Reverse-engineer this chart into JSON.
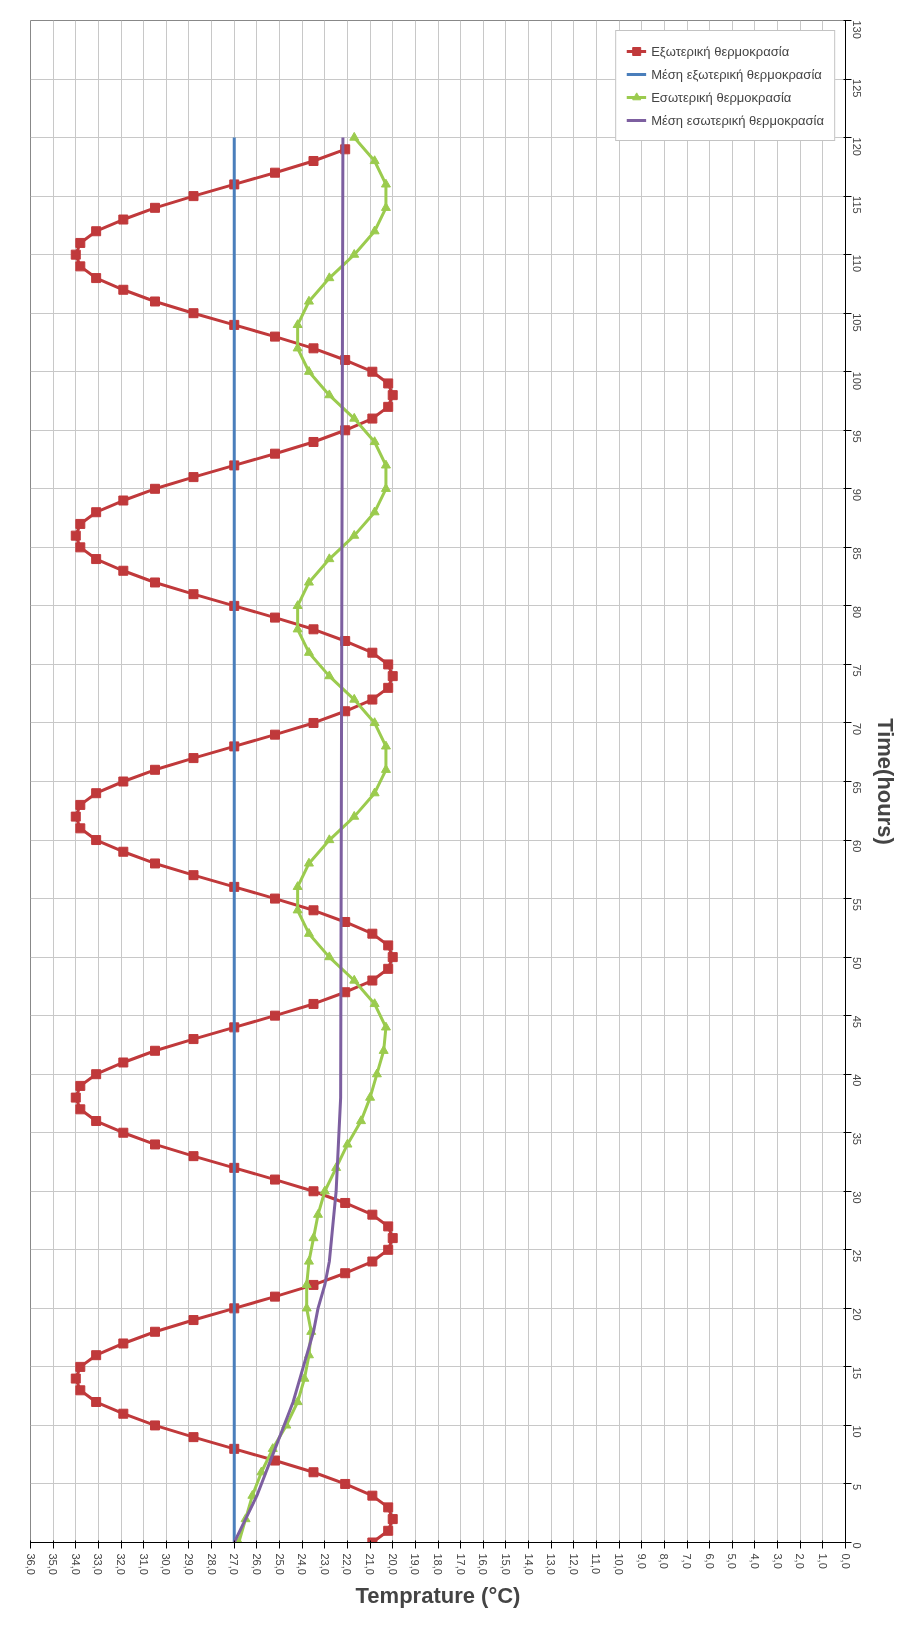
{
  "chart_data": {
    "type": "line",
    "orientation": "horizontal",
    "xlabel": "Temprature (°C)",
    "ylabel": "Time(hours)",
    "xlim": [
      36,
      0
    ],
    "xticks": [
      {
        "value": 36,
        "label": "36,0"
      },
      {
        "value": 35,
        "label": "35,0"
      },
      {
        "value": 34,
        "label": "34,0"
      },
      {
        "value": 33,
        "label": "33,0"
      },
      {
        "value": 32,
        "label": "32,0"
      },
      {
        "value": 31,
        "label": "31,0"
      },
      {
        "value": 30,
        "label": "30,0"
      },
      {
        "value": 29,
        "label": "29,0"
      },
      {
        "value": 28,
        "label": "28,0"
      },
      {
        "value": 27,
        "label": "27,0"
      },
      {
        "value": 26,
        "label": "26,0"
      },
      {
        "value": 25,
        "label": "25,0"
      },
      {
        "value": 24,
        "label": "24,0"
      },
      {
        "value": 23,
        "label": "23,0"
      },
      {
        "value": 22,
        "label": "22,0"
      },
      {
        "value": 21,
        "label": "21,0"
      },
      {
        "value": 20,
        "label": "20,0"
      },
      {
        "value": 19,
        "label": "19,0"
      },
      {
        "value": 18,
        "label": "18,0"
      },
      {
        "value": 17,
        "label": "17,0"
      },
      {
        "value": 16,
        "label": "16,0"
      },
      {
        "value": 15,
        "label": "15,0"
      },
      {
        "value": 14,
        "label": "14,0"
      },
      {
        "value": 13,
        "label": "13,0"
      },
      {
        "value": 12,
        "label": "12,0"
      },
      {
        "value": 11,
        "label": "11,0"
      },
      {
        "value": 10,
        "label": "10,0"
      },
      {
        "value": 9,
        "label": "9,0"
      },
      {
        "value": 8,
        "label": "8,0"
      },
      {
        "value": 7,
        "label": "7,0"
      },
      {
        "value": 6,
        "label": "6,0"
      },
      {
        "value": 5,
        "label": "5,0"
      },
      {
        "value": 4,
        "label": "4,0"
      },
      {
        "value": 3,
        "label": "3,0"
      },
      {
        "value": 2,
        "label": "2,0"
      },
      {
        "value": 1,
        "label": "1,0"
      },
      {
        "value": 0,
        "label": "0,0"
      }
    ],
    "ylim": [
      0,
      130
    ],
    "yticks": [
      0,
      5,
      10,
      15,
      20,
      25,
      30,
      35,
      40,
      45,
      50,
      55,
      60,
      65,
      70,
      75,
      80,
      85,
      90,
      95,
      100,
      105,
      110,
      115,
      120,
      125,
      130
    ],
    "grid": true,
    "legend": "top right",
    "series": [
      {
        "name": "Εξωτερική θερμοκρασία",
        "color": "#c0393b",
        "marker": "square",
        "x": [
          0,
          1,
          2,
          3,
          4,
          5,
          6,
          7,
          8,
          9,
          10,
          11,
          12,
          13,
          14,
          15,
          16,
          17,
          18,
          19,
          20,
          21,
          22,
          23,
          24,
          25,
          26,
          27,
          28,
          29,
          30,
          31,
          32,
          33,
          34,
          35,
          36,
          37,
          38,
          39,
          40,
          41,
          42,
          43,
          44,
          45,
          46,
          47,
          48,
          49,
          50,
          51,
          52,
          53,
          54,
          55,
          56,
          57,
          58,
          59,
          60,
          61,
          62,
          63,
          64,
          65,
          66,
          67,
          68,
          69,
          70,
          71,
          72,
          73,
          74,
          75,
          76,
          77,
          78,
          79,
          80,
          81,
          82,
          83,
          84,
          85,
          86,
          87,
          88,
          89,
          90,
          91,
          92,
          93,
          94,
          95,
          96,
          97,
          98,
          99,
          100,
          101,
          102,
          103,
          104,
          105,
          106,
          107,
          108,
          109,
          110,
          111,
          112,
          113,
          114,
          115,
          116,
          117,
          118,
          119
        ],
        "values": [
          20.9,
          20.2,
          20.0,
          20.2,
          20.9,
          22.1,
          23.5,
          25.2,
          27.0,
          28.8,
          30.5,
          31.9,
          33.1,
          33.8,
          34.0,
          33.8,
          33.1,
          31.9,
          30.5,
          28.8,
          27.0,
          25.2,
          23.5,
          22.1,
          20.9,
          20.2,
          20.0,
          20.2,
          20.9,
          22.1,
          23.5,
          25.2,
          27.0,
          28.8,
          30.5,
          31.9,
          33.1,
          33.8,
          34.0,
          33.8,
          33.1,
          31.9,
          30.5,
          28.8,
          27.0,
          25.2,
          23.5,
          22.1,
          20.9,
          20.2,
          20.0,
          20.2,
          20.9,
          22.1,
          23.5,
          25.2,
          27.0,
          28.8,
          30.5,
          31.9,
          33.1,
          33.8,
          34.0,
          33.8,
          33.1,
          31.9,
          30.5,
          28.8,
          27.0,
          25.2,
          23.5,
          22.1,
          20.9,
          20.2,
          20.0,
          20.2,
          20.9,
          22.1,
          23.5,
          25.2,
          27.0,
          28.8,
          30.5,
          31.9,
          33.1,
          33.8,
          34.0,
          33.8,
          33.1,
          31.9,
          30.5,
          28.8,
          27.0,
          25.2,
          23.5,
          22.1,
          20.9,
          20.2,
          20.0,
          20.2,
          20.9,
          22.1,
          23.5,
          25.2,
          27.0,
          28.8,
          30.5,
          31.9,
          33.1,
          33.8,
          34.0,
          33.8,
          33.1,
          31.9,
          30.5,
          28.8,
          27.0,
          25.2,
          23.5,
          22.1
        ]
      },
      {
        "name": "Μέση εξωτερική θερμοκρασία",
        "color": "#4a7ebb",
        "marker": "none",
        "x": [
          0,
          120
        ],
        "values": [
          27.0,
          27.0
        ]
      },
      {
        "name": "Εσωτερική θερμοκρασία",
        "color": "#9bcb4e",
        "marker": "triangle",
        "x": [
          0,
          2,
          4,
          6,
          8,
          10,
          12,
          14,
          16,
          18,
          20,
          22,
          24,
          26,
          28,
          30,
          32,
          34,
          36,
          38,
          40,
          42,
          44,
          46,
          48,
          50,
          52,
          54,
          56,
          58,
          60,
          62,
          64,
          66,
          68,
          70,
          72,
          74,
          76,
          78,
          80,
          82,
          84,
          86,
          88,
          90,
          92,
          94,
          96,
          98,
          100,
          102,
          104,
          106,
          108,
          110,
          112,
          114,
          116,
          118,
          120
        ],
        "values": [
          26.8,
          26.5,
          26.2,
          25.8,
          25.3,
          24.7,
          24.2,
          23.9,
          23.7,
          23.6,
          23.8,
          23.8,
          23.7,
          23.5,
          23.3,
          23.0,
          22.5,
          22.0,
          21.4,
          21.0,
          20.7,
          20.4,
          20.3,
          20.8,
          21.7,
          22.8,
          23.7,
          24.2,
          24.2,
          23.7,
          22.8,
          21.7,
          20.8,
          20.3,
          20.3,
          20.8,
          21.7,
          22.8,
          23.7,
          24.2,
          24.2,
          23.7,
          22.8,
          21.7,
          20.8,
          20.3,
          20.3,
          20.8,
          21.7,
          22.8,
          23.7,
          24.2,
          24.2,
          23.7,
          22.8,
          21.7,
          20.8,
          20.3,
          20.3,
          20.8,
          21.7
        ]
      },
      {
        "name": "Μέση εσωτερική θερμοκρασία",
        "color": "#7d5fa0",
        "marker": "none",
        "x": [
          0,
          2,
          4,
          6,
          8,
          10,
          12,
          14,
          16,
          18,
          20,
          22,
          24,
          26,
          28,
          30,
          34,
          38,
          120
        ],
        "values": [
          27.0,
          26.5,
          26.0,
          25.6,
          25.2,
          24.8,
          24.4,
          24.1,
          23.8,
          23.5,
          23.3,
          23.0,
          22.8,
          22.7,
          22.6,
          22.5,
          22.4,
          22.3,
          22.2
        ]
      }
    ]
  }
}
